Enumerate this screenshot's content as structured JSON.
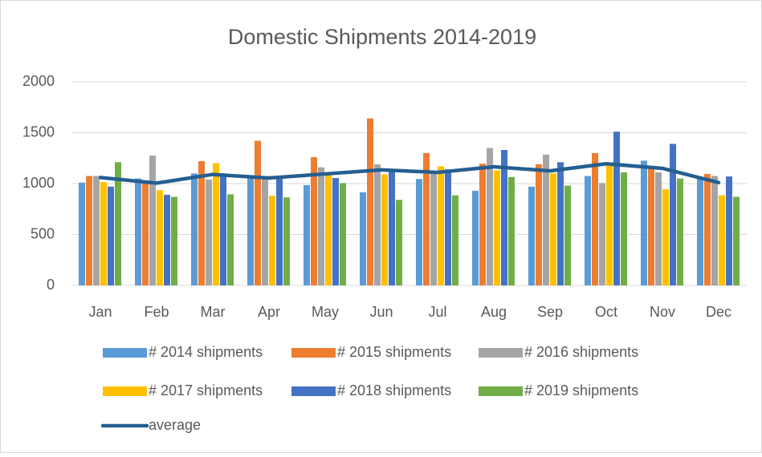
{
  "chart_data": {
    "type": "bar",
    "title": "Domestic Shipments 2014-2019",
    "categories": [
      "Jan",
      "Feb",
      "Mar",
      "Apr",
      "May",
      "Jun",
      "Jul",
      "Aug",
      "Sep",
      "Oct",
      "Nov",
      "Dec"
    ],
    "ylim": [
      0,
      2000
    ],
    "yticks": [
      0,
      500,
      1000,
      1500,
      2000
    ],
    "grid": true,
    "series": [
      {
        "name": "# 2014 shipments",
        "color": "#5b9bd5",
        "values": [
          1010,
          1050,
          1100,
          1070,
          985,
          915,
          1045,
          930,
          970,
          1075,
          1225,
          1060
        ]
      },
      {
        "name": "# 2015 shipments",
        "color": "#ed7d31",
        "values": [
          1075,
          1000,
          1220,
          1420,
          1260,
          1640,
          1300,
          1195,
          1190,
          1300,
          1150,
          1095
        ]
      },
      {
        "name": "# 2016 shipments",
        "color": "#a5a5a5",
        "values": [
          1075,
          1275,
          1040,
          1050,
          1160,
          1190,
          1110,
          1350,
          1285,
          1005,
          1110,
          1075
        ]
      },
      {
        "name": "# 2017 shipments",
        "color": "#ffc000",
        "values": [
          1015,
          935,
          1200,
          880,
          1100,
          1090,
          1170,
          1130,
          1100,
          1180,
          945,
          885
        ]
      },
      {
        "name": "# 2018 shipments",
        "color": "#4472c4",
        "values": [
          970,
          890,
          1100,
          1060,
          1055,
          1125,
          1140,
          1330,
          1210,
          1510,
          1390,
          1070
        ]
      },
      {
        "name": "# 2019 shipments",
        "color": "#70ad47",
        "values": [
          1210,
          870,
          895,
          865,
          1005,
          840,
          885,
          1065,
          980,
          1110,
          1050,
          870
        ]
      },
      {
        "name": "average",
        "color": "#255e91",
        "type": "line",
        "values": [
          1060,
          1005,
          1090,
          1055,
          1095,
          1135,
          1110,
          1165,
          1125,
          1195,
          1150,
          1010
        ]
      }
    ]
  }
}
